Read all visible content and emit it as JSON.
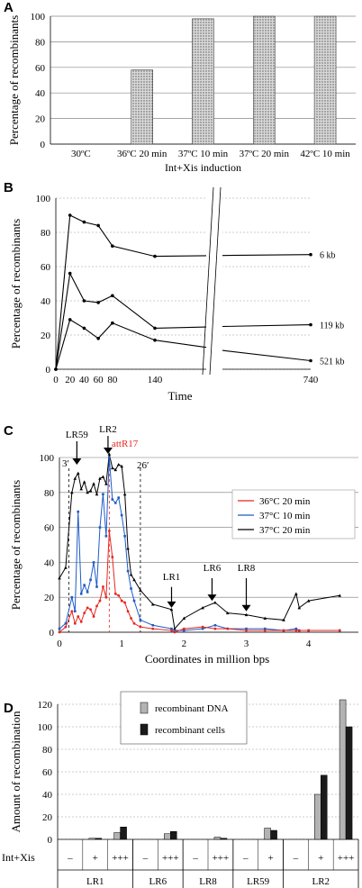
{
  "chart_data": [
    {
      "panel": "A",
      "type": "bar",
      "ylabel": "Percentage of recombinants",
      "xlabel": "Int+Xis induction",
      "ylim": [
        0,
        100
      ],
      "yticks": [
        "0",
        "20",
        "40",
        "60",
        "80",
        "100"
      ],
      "categories": [
        "30ºC",
        "36ºC 20 min",
        "37ºC 10 min",
        "37ºC 20 min",
        "42ºC 10 min"
      ],
      "values": [
        0,
        58,
        98,
        100,
        100
      ],
      "grid": true
    },
    {
      "panel": "B",
      "type": "line",
      "ylabel": "Percentage of recombinants",
      "xlabel": "Time",
      "ylim": [
        0,
        100
      ],
      "yticks": [
        "0",
        "20",
        "40",
        "60",
        "80",
        "100"
      ],
      "xticks": [
        "0",
        "20",
        "40",
        "60",
        "80",
        "140",
        "740"
      ],
      "grid": true,
      "series": [
        {
          "name": "6 kb",
          "x": [
            0,
            20,
            40,
            60,
            80,
            140,
            740
          ],
          "y": [
            0,
            90,
            86,
            84,
            72,
            66,
            67
          ]
        },
        {
          "name": "119 kb",
          "x": [
            0,
            20,
            40,
            60,
            80,
            140,
            740
          ],
          "y": [
            0,
            56,
            40,
            39,
            43,
            24,
            26
          ]
        },
        {
          "name": "521 kb",
          "x": [
            0,
            20,
            40,
            60,
            80,
            140,
            740
          ],
          "y": [
            0,
            29,
            24,
            18,
            27,
            17,
            5
          ]
        }
      ]
    },
    {
      "panel": "C",
      "type": "line",
      "ylabel": "Percentage of recombinants",
      "xlabel": "Coordinates in million bps",
      "xlim": [
        0,
        4.8
      ],
      "ylim": [
        0,
        100
      ],
      "yticks": [
        "0",
        "20",
        "40",
        "60",
        "80",
        "100"
      ],
      "xticks": [
        "0",
        "1",
        "2",
        "3",
        "4"
      ],
      "grid": true,
      "legend": "top-right",
      "annotations": [
        "LR59",
        "LR2",
        "attR17",
        "3′",
        "26′",
        "LR1",
        "LR6",
        "LR8"
      ],
      "series": [
        {
          "name": "36°C 20 min",
          "color": "#e8251f",
          "x": [
            0,
            0.1,
            0.2,
            0.25,
            0.3,
            0.35,
            0.4,
            0.45,
            0.5,
            0.55,
            0.6,
            0.65,
            0.7,
            0.75,
            0.8,
            0.85,
            0.9,
            0.95,
            1.0,
            1.05,
            1.1,
            1.15,
            1.2,
            1.3,
            1.5,
            1.8,
            1.85,
            2.0,
            2.3,
            2.5,
            2.7,
            3.0,
            3.3,
            3.6,
            3.8,
            3.85,
            4.0,
            4.5
          ],
          "y": [
            0,
            3,
            12,
            5,
            9,
            6,
            11,
            14,
            13,
            9,
            15,
            18,
            26,
            20,
            58,
            43,
            22,
            21,
            18,
            17,
            12,
            8,
            5,
            3,
            2,
            1,
            0,
            2,
            3,
            2,
            2,
            1,
            1,
            1,
            1,
            1,
            1,
            1
          ]
        },
        {
          "name": "37°C 10 min",
          "color": "#1f5bc8",
          "x": [
            0,
            0.1,
            0.2,
            0.25,
            0.3,
            0.35,
            0.4,
            0.45,
            0.5,
            0.55,
            0.6,
            0.65,
            0.7,
            0.75,
            0.8,
            0.85,
            0.9,
            0.95,
            1.0,
            1.05,
            1.1,
            1.15,
            1.2,
            1.3,
            1.5,
            1.8,
            1.85,
            2.0,
            2.3,
            2.5,
            2.7,
            3.0,
            3.3,
            3.6,
            3.8,
            3.85,
            4.0,
            4.5
          ],
          "y": [
            2,
            5,
            20,
            12,
            69,
            22,
            27,
            23,
            30,
            40,
            26,
            60,
            79,
            55,
            100,
            76,
            74,
            77,
            67,
            55,
            35,
            25,
            18,
            7,
            4,
            2,
            1,
            1,
            2,
            4,
            2,
            2,
            2,
            1,
            2,
            1,
            1,
            1
          ]
        },
        {
          "name": "37°C 20 min",
          "color": "#000000",
          "x": [
            0,
            0.1,
            0.2,
            0.25,
            0.3,
            0.35,
            0.4,
            0.45,
            0.5,
            0.55,
            0.6,
            0.65,
            0.7,
            0.75,
            0.8,
            0.85,
            0.9,
            0.95,
            1.0,
            1.05,
            1.1,
            1.15,
            1.2,
            1.3,
            1.5,
            1.8,
            1.85,
            2.0,
            2.3,
            2.5,
            2.7,
            3.0,
            3.3,
            3.6,
            3.8,
            3.85,
            4.0,
            4.5
          ],
          "y": [
            31,
            37,
            80,
            88,
            91,
            82,
            86,
            80,
            81,
            85,
            79,
            88,
            89,
            85,
            102,
            94,
            93,
            96,
            95,
            79,
            48,
            33,
            30,
            24,
            16,
            13,
            2,
            8,
            14,
            17,
            11,
            10,
            8,
            7,
            22,
            14,
            18,
            21
          ]
        }
      ]
    },
    {
      "panel": "D",
      "type": "bar",
      "ylabel": "Amount of recombination",
      "row_label": "Int+Xis",
      "ylim": [
        0,
        120
      ],
      "yticks": [
        "0",
        "20",
        "40",
        "60",
        "80",
        "100",
        "120"
      ],
      "grid": true,
      "legend": "top-center",
      "conditions": [
        "–",
        "+",
        "+++",
        "–",
        "+++",
        "–",
        "+++",
        "–",
        "+",
        "–",
        "+",
        "+++"
      ],
      "groups": [
        "LR1",
        "LR6",
        "LR8",
        "LR59",
        "LR2"
      ],
      "group_spans": [
        3,
        2,
        2,
        2,
        3
      ],
      "series": [
        {
          "name": "recombinant DNA",
          "color": "#b3b3b3",
          "values": [
            0,
            1,
            6,
            0,
            5,
            0,
            2,
            0,
            10,
            0,
            40,
            124
          ]
        },
        {
          "name": "recombinant cells",
          "color": "#1a1a1a",
          "values": [
            0,
            1,
            11,
            0,
            7,
            0,
            1,
            0,
            8,
            0,
            57,
            100
          ]
        }
      ]
    }
  ]
}
